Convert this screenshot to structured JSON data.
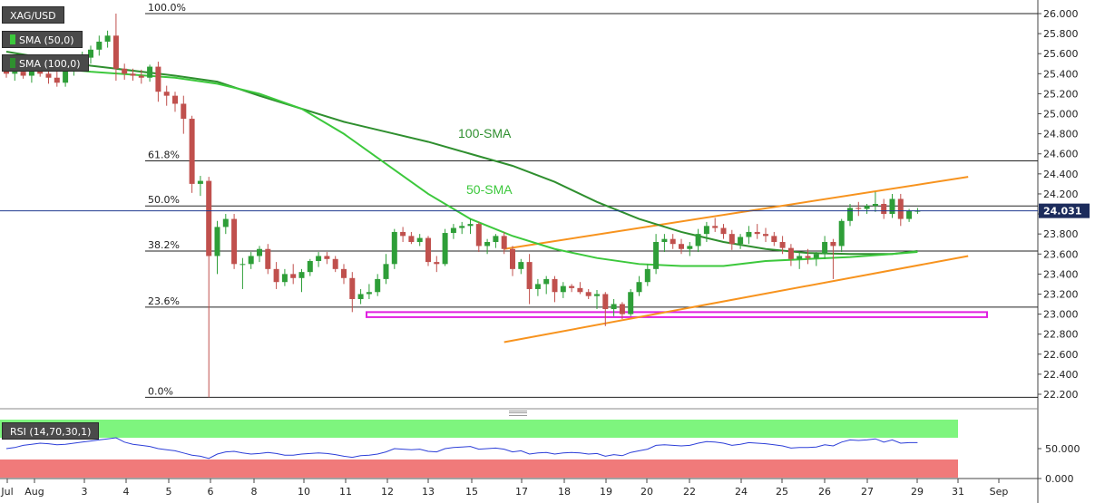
{
  "chart_data": {
    "type": "candlestick",
    "symbol": "XAG/USD",
    "x_labels": [
      "Jul",
      "Aug",
      "3",
      "4",
      "5",
      "6",
      "8",
      "10",
      "11",
      "12",
      "13",
      "15",
      "17",
      "18",
      "19",
      "20",
      "22",
      "24",
      "25",
      "26",
      "27",
      "29",
      "31",
      "Sep"
    ],
    "y_axis": {
      "range": [
        22.1,
        26.1
      ],
      "ticks": [
        "26.000",
        "25.800",
        "25.600",
        "25.400",
        "25.200",
        "25.000",
        "24.800",
        "24.600",
        "24.400",
        "24.200",
        "24.000",
        "23.800",
        "23.600",
        "23.400",
        "23.200",
        "23.000",
        "22.800",
        "22.600",
        "22.400",
        "22.200"
      ]
    },
    "last_price": "24.031",
    "last_price_value": 24.031,
    "candles": [
      [
        25.45,
        25.5,
        25.36,
        25.4
      ],
      [
        25.4,
        25.47,
        25.33,
        25.42
      ],
      [
        25.42,
        25.55,
        25.35,
        25.38
      ],
      [
        25.38,
        25.48,
        25.31,
        25.44
      ],
      [
        25.44,
        25.52,
        25.37,
        25.4
      ],
      [
        25.4,
        25.46,
        25.3,
        25.36
      ],
      [
        25.36,
        25.44,
        25.27,
        25.31
      ],
      [
        25.31,
        25.46,
        25.27,
        25.43
      ],
      [
        25.43,
        25.54,
        25.38,
        25.51
      ],
      [
        25.51,
        25.62,
        25.45,
        25.56
      ],
      [
        25.56,
        25.68,
        25.5,
        25.64
      ],
      [
        25.64,
        25.78,
        25.58,
        25.72
      ],
      [
        25.72,
        25.83,
        25.66,
        25.78
      ],
      [
        25.78,
        26.0,
        25.33,
        25.45
      ],
      [
        25.45,
        25.5,
        25.34,
        25.4
      ],
      [
        25.4,
        25.45,
        25.33,
        25.38
      ],
      [
        25.38,
        25.44,
        25.3,
        25.36
      ],
      [
        25.36,
        25.49,
        25.32,
        25.47
      ],
      [
        25.47,
        25.52,
        25.12,
        25.22
      ],
      [
        25.22,
        25.28,
        25.08,
        25.18
      ],
      [
        25.18,
        25.22,
        25.02,
        25.1
      ],
      [
        25.1,
        25.18,
        24.8,
        24.95
      ],
      [
        24.95,
        24.98,
        24.21,
        24.3
      ],
      [
        24.3,
        24.38,
        24.18,
        24.33
      ],
      [
        24.33,
        24.37,
        22.17,
        23.58
      ],
      [
        23.58,
        23.93,
        23.4,
        23.87
      ],
      [
        23.87,
        24.0,
        23.8,
        23.95
      ],
      [
        23.95,
        24.0,
        23.45,
        23.5
      ],
      [
        23.5,
        23.56,
        23.25,
        23.5
      ],
      [
        23.5,
        23.62,
        23.45,
        23.58
      ],
      [
        23.58,
        23.68,
        23.52,
        23.65
      ],
      [
        23.65,
        23.7,
        23.4,
        23.45
      ],
      [
        23.45,
        23.52,
        23.25,
        23.32
      ],
      [
        23.32,
        23.45,
        23.28,
        23.4
      ],
      [
        23.4,
        23.5,
        23.3,
        23.36
      ],
      [
        23.36,
        23.45,
        23.22,
        23.42
      ],
      [
        23.42,
        23.55,
        23.38,
        23.53
      ],
      [
        23.53,
        23.62,
        23.47,
        23.58
      ],
      [
        23.58,
        23.62,
        23.5,
        23.55
      ],
      [
        23.55,
        23.58,
        23.42,
        23.45
      ],
      [
        23.45,
        23.5,
        23.3,
        23.36
      ],
      [
        23.36,
        23.42,
        23.02,
        23.15
      ],
      [
        23.15,
        23.25,
        23.1,
        23.2
      ],
      [
        23.2,
        23.3,
        23.15,
        23.22
      ],
      [
        23.22,
        23.4,
        23.18,
        23.35
      ],
      [
        23.35,
        23.6,
        23.3,
        23.5
      ],
      [
        23.5,
        23.85,
        23.45,
        23.82
      ],
      [
        23.82,
        23.87,
        23.72,
        23.78
      ],
      [
        23.78,
        23.82,
        23.7,
        23.72
      ],
      [
        23.72,
        23.8,
        23.68,
        23.76
      ],
      [
        23.76,
        23.78,
        23.48,
        23.52
      ],
      [
        23.52,
        23.58,
        23.42,
        23.5
      ],
      [
        23.5,
        23.85,
        23.48,
        23.81
      ],
      [
        23.81,
        23.9,
        23.75,
        23.86
      ],
      [
        23.86,
        23.92,
        23.8,
        23.88
      ],
      [
        23.88,
        23.95,
        23.8,
        23.9
      ],
      [
        23.9,
        23.92,
        23.62,
        23.68
      ],
      [
        23.68,
        23.75,
        23.6,
        23.72
      ],
      [
        23.72,
        23.8,
        23.66,
        23.78
      ],
      [
        23.78,
        23.82,
        23.6,
        23.65
      ],
      [
        23.65,
        23.68,
        23.38,
        23.45
      ],
      [
        23.45,
        23.55,
        23.4,
        23.52
      ],
      [
        23.52,
        23.6,
        23.1,
        23.25
      ],
      [
        23.25,
        23.35,
        23.18,
        23.3
      ],
      [
        23.3,
        23.38,
        23.2,
        23.35
      ],
      [
        23.35,
        23.38,
        23.12,
        23.22
      ],
      [
        23.22,
        23.32,
        23.16,
        23.28
      ],
      [
        23.28,
        23.3,
        23.22,
        23.26
      ],
      [
        23.26,
        23.32,
        23.2,
        23.22
      ],
      [
        23.22,
        23.25,
        23.15,
        23.18
      ],
      [
        23.18,
        23.24,
        23.05,
        23.2
      ],
      [
        23.2,
        23.22,
        22.88,
        23.05
      ],
      [
        23.05,
        23.15,
        22.98,
        23.1
      ],
      [
        23.1,
        23.12,
        22.95,
        23.0
      ],
      [
        23.0,
        23.25,
        22.98,
        23.22
      ],
      [
        23.22,
        23.38,
        23.18,
        23.32
      ],
      [
        23.32,
        23.5,
        23.28,
        23.45
      ],
      [
        23.45,
        23.8,
        23.4,
        23.72
      ],
      [
        23.72,
        23.8,
        23.62,
        23.75
      ],
      [
        23.75,
        23.8,
        23.65,
        23.7
      ],
      [
        23.7,
        23.75,
        23.6,
        23.65
      ],
      [
        23.65,
        23.72,
        23.58,
        23.68
      ],
      [
        23.68,
        23.85,
        23.62,
        23.8
      ],
      [
        23.8,
        23.92,
        23.72,
        23.88
      ],
      [
        23.88,
        23.96,
        23.82,
        23.86
      ],
      [
        23.86,
        23.9,
        23.75,
        23.8
      ],
      [
        23.8,
        23.84,
        23.64,
        23.7
      ],
      [
        23.7,
        23.8,
        23.65,
        23.77
      ],
      [
        23.77,
        23.88,
        23.7,
        23.82
      ],
      [
        23.82,
        23.9,
        23.75,
        23.8
      ],
      [
        23.8,
        23.86,
        23.72,
        23.78
      ],
      [
        23.78,
        23.82,
        23.68,
        23.72
      ],
      [
        23.72,
        23.78,
        23.6,
        23.66
      ],
      [
        23.66,
        23.7,
        23.48,
        23.55
      ],
      [
        23.55,
        23.62,
        23.45,
        23.58
      ],
      [
        23.58,
        23.65,
        23.5,
        23.56
      ],
      [
        23.56,
        23.62,
        23.48,
        23.6
      ],
      [
        23.6,
        23.78,
        23.55,
        23.72
      ],
      [
        23.72,
        23.75,
        23.35,
        23.68
      ],
      [
        23.68,
        23.95,
        23.62,
        23.93
      ],
      [
        23.93,
        24.1,
        23.88,
        24.06
      ],
      [
        24.06,
        24.12,
        23.98,
        24.05
      ],
      [
        24.05,
        24.1,
        24.0,
        24.08
      ],
      [
        24.08,
        24.22,
        24.02,
        24.1
      ],
      [
        24.1,
        24.15,
        23.95,
        24.0
      ],
      [
        24.0,
        24.2,
        23.96,
        24.15
      ],
      [
        24.15,
        24.2,
        23.88,
        23.95
      ],
      [
        23.95,
        24.05,
        23.92,
        24.03
      ],
      [
        24.03,
        24.06,
        24.0,
        24.031
      ]
    ],
    "sma50": [
      [
        0,
        25.5
      ],
      [
        10,
        25.42
      ],
      [
        20,
        25.36
      ],
      [
        25,
        25.3
      ],
      [
        30,
        25.2
      ],
      [
        35,
        25.05
      ],
      [
        40,
        24.8
      ],
      [
        45,
        24.5
      ],
      [
        50,
        24.2
      ],
      [
        55,
        23.95
      ],
      [
        60,
        23.78
      ],
      [
        65,
        23.65
      ],
      [
        70,
        23.56
      ],
      [
        75,
        23.5
      ],
      [
        80,
        23.48
      ],
      [
        85,
        23.48
      ],
      [
        90,
        23.53
      ],
      [
        95,
        23.55
      ],
      [
        100,
        23.57
      ],
      [
        105,
        23.6
      ],
      [
        108,
        23.62
      ]
    ],
    "sma100": [
      [
        0,
        25.62
      ],
      [
        10,
        25.48
      ],
      [
        20,
        25.38
      ],
      [
        25,
        25.32
      ],
      [
        30,
        25.18
      ],
      [
        35,
        25.05
      ],
      [
        40,
        24.92
      ],
      [
        45,
        24.82
      ],
      [
        50,
        24.72
      ],
      [
        55,
        24.6
      ],
      [
        60,
        24.48
      ],
      [
        65,
        24.32
      ],
      [
        70,
        24.12
      ],
      [
        75,
        23.95
      ],
      [
        80,
        23.82
      ],
      [
        85,
        23.72
      ],
      [
        90,
        23.65
      ],
      [
        95,
        23.61
      ],
      [
        100,
        23.6
      ],
      [
        105,
        23.6
      ],
      [
        108,
        23.63
      ]
    ],
    "fib_levels": [
      {
        "label": "100.0%",
        "value": 26.0
      },
      {
        "label": "61.8%",
        "value": 24.53
      },
      {
        "label": "50.0%",
        "value": 24.08
      },
      {
        "label": "38.2%",
        "value": 23.63
      },
      {
        "label": "23.6%",
        "value": 23.07
      },
      {
        "label": "0.0%",
        "value": 22.17
      }
    ],
    "channel_upper": [
      [
        59,
        23.65
      ],
      [
        114,
        24.37
      ]
    ],
    "channel_lower": [
      [
        59,
        22.72
      ],
      [
        114,
        23.58
      ]
    ],
    "support_zone": [
      22.97,
      23.02
    ],
    "annotations": {
      "sma100": "100-SMA",
      "sma50": "50-SMA"
    },
    "legends": {
      "symbol": "XAG/USD",
      "sma50": "SMA (50,0)",
      "sma100": "SMA (100,0)",
      "rsi": "RSI (14,70,30,1)"
    },
    "rsi": {
      "axis_ticks": [
        "50.000",
        "0.000"
      ],
      "axis_tick_values": [
        50,
        0
      ],
      "values": [
        50,
        52,
        56,
        58,
        60,
        59,
        57,
        58,
        60,
        62,
        64,
        66,
        68,
        70,
        62,
        58,
        56,
        54,
        50,
        48,
        46,
        42,
        38,
        36,
        32,
        40,
        44,
        45,
        42,
        40,
        41,
        43,
        41,
        38,
        38,
        40,
        41,
        42,
        41,
        39,
        36,
        34,
        37,
        38,
        40,
        44,
        50,
        49,
        48,
        49,
        45,
        44,
        50,
        52,
        53,
        54,
        49,
        50,
        51,
        49,
        44,
        46,
        40,
        42,
        43,
        40,
        42,
        43,
        42,
        40,
        41,
        36,
        39,
        37,
        43,
        46,
        49,
        56,
        57,
        56,
        55,
        56,
        60,
        63,
        62,
        60,
        56,
        58,
        61,
        60,
        59,
        57,
        55,
        51,
        52,
        52,
        53,
        57,
        55,
        62,
        66,
        65,
        66,
        68,
        62,
        66,
        60,
        61,
        61
      ]
    },
    "colors": {
      "up": "#2e9e38",
      "down": "#c0504d",
      "sma50": "#3cc83c",
      "sma100": "#2f8f2f",
      "channel": "#f7931e",
      "support_zone": "#e020e0",
      "rsi_line": "#2d3fd8",
      "rsi_overbought": "#7ef57e",
      "rsi_oversold": "#f07a7a",
      "price_line": "#1f3a8f"
    }
  }
}
